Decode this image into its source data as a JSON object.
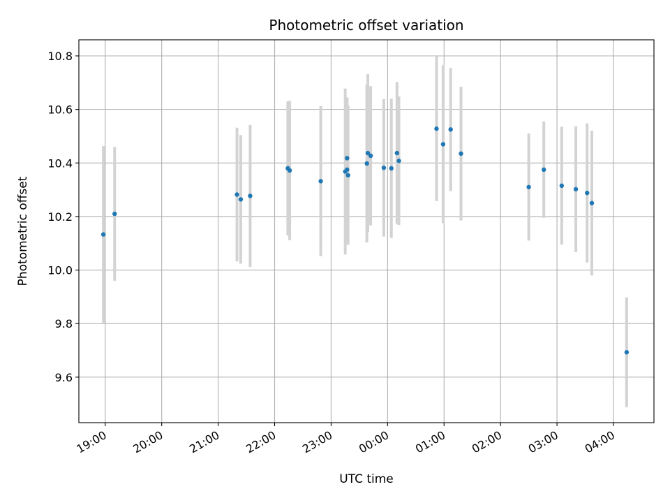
{
  "chart_data": {
    "type": "scatter",
    "title": "Photometric offset variation",
    "xlabel": "UTC time",
    "ylabel": "Photometric offset",
    "x_tick_labels": [
      "19:00",
      "20:00",
      "21:00",
      "22:00",
      "23:00",
      "00:00",
      "01:00",
      "02:00",
      "03:00",
      "04:00"
    ],
    "y_tick_labels": [
      "9.6",
      "9.8",
      "10.0",
      "10.2",
      "10.4",
      "10.6",
      "10.8"
    ],
    "xlim": [
      "18:32",
      "04:43"
    ],
    "ylim": [
      9.43,
      10.86
    ],
    "grid": true,
    "marker_color": "#1f77b4",
    "errorbar_color": "#d3d3d3",
    "points": [
      {
        "t": "18:58",
        "y": 10.133,
        "err": 0.33
      },
      {
        "t": "19:10",
        "y": 10.21,
        "err": 0.25
      },
      {
        "t": "21:20",
        "y": 10.282,
        "err": 0.25
      },
      {
        "t": "21:24",
        "y": 10.264,
        "err": 0.24
      },
      {
        "t": "21:34",
        "y": 10.277,
        "err": 0.265
      },
      {
        "t": "22:14",
        "y": 10.38,
        "err": 0.25
      },
      {
        "t": "22:16",
        "y": 10.372,
        "err": 0.26
      },
      {
        "t": "22:49",
        "y": 10.332,
        "err": 0.28
      },
      {
        "t": "23:15",
        "y": 10.368,
        "err": 0.31
      },
      {
        "t": "23:17",
        "y": 10.375,
        "err": 0.27
      },
      {
        "t": "23:17",
        "y": 10.418,
        "err": 0.22
      },
      {
        "t": "23:18",
        "y": 10.354,
        "err": 0.26
      },
      {
        "t": "23:38",
        "y": 10.398,
        "err": 0.295
      },
      {
        "t": "23:39",
        "y": 10.437,
        "err": 0.295
      },
      {
        "t": "23:42",
        "y": 10.427,
        "err": 0.26
      },
      {
        "t": "23:56",
        "y": 10.382,
        "err": 0.257
      },
      {
        "t": "00:04",
        "y": 10.38,
        "err": 0.26
      },
      {
        "t": "00:10",
        "y": 10.437,
        "err": 0.265
      },
      {
        "t": "00:12",
        "y": 10.408,
        "err": 0.24
      },
      {
        "t": "00:52",
        "y": 10.528,
        "err": 0.27
      },
      {
        "t": "00:59",
        "y": 10.47,
        "err": 0.295
      },
      {
        "t": "01:07",
        "y": 10.525,
        "err": 0.23
      },
      {
        "t": "01:18",
        "y": 10.435,
        "err": 0.25
      },
      {
        "t": "02:30",
        "y": 10.31,
        "err": 0.2
      },
      {
        "t": "02:46",
        "y": 10.375,
        "err": 0.18
      },
      {
        "t": "03:05",
        "y": 10.315,
        "err": 0.22
      },
      {
        "t": "03:20",
        "y": 10.302,
        "err": 0.235
      },
      {
        "t": "03:32",
        "y": 10.288,
        "err": 0.26
      },
      {
        "t": "03:37",
        "y": 10.25,
        "err": 0.27
      },
      {
        "t": "04:14",
        "y": 9.693,
        "err": 0.205
      }
    ]
  }
}
